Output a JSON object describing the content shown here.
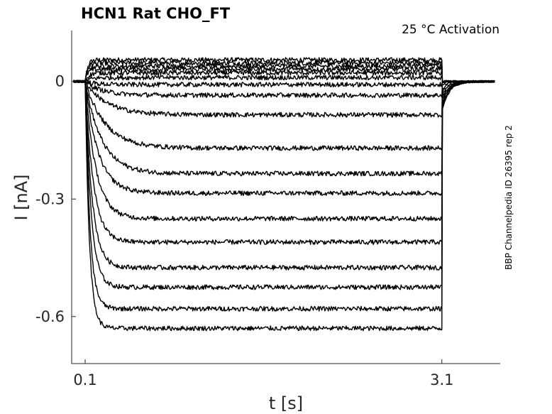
{
  "chart_data": {
    "type": "line",
    "title": "HCN1  Rat  CHO_FT",
    "annotation": "25 °C  Activation",
    "side_label": "BBP Channelpedia ID 26395 rep 2",
    "xlabel": "t [s]",
    "ylabel": "I [nA]",
    "xlim": [
      0.0,
      3.55
    ],
    "ylim": [
      -0.72,
      0.13
    ],
    "x_ticks": [
      0.1,
      3.1
    ],
    "x_tick_labels": [
      "0.1",
      "3.1"
    ],
    "y_ticks": [
      0,
      -0.3,
      -0.6
    ],
    "y_tick_labels": [
      "0",
      "-0.3",
      "-0.6"
    ],
    "grid": false,
    "legend": "none",
    "step_start_s": 0.1,
    "step_end_s": 3.1,
    "series_steady_state_nA": [
      0.055,
      0.047,
      0.039,
      0.031,
      0.022,
      0.01,
      -0.008,
      -0.035,
      -0.085,
      -0.17,
      -0.235,
      -0.285,
      -0.35,
      -0.41,
      -0.475,
      -0.525,
      -0.58,
      -0.63
    ],
    "series_tau_s": [
      0.02,
      0.02,
      0.02,
      0.02,
      0.03,
      0.05,
      0.09,
      0.14,
      0.18,
      0.17,
      0.14,
      0.11,
      0.09,
      0.07,
      0.06,
      0.05,
      0.04,
      0.035
    ]
  }
}
